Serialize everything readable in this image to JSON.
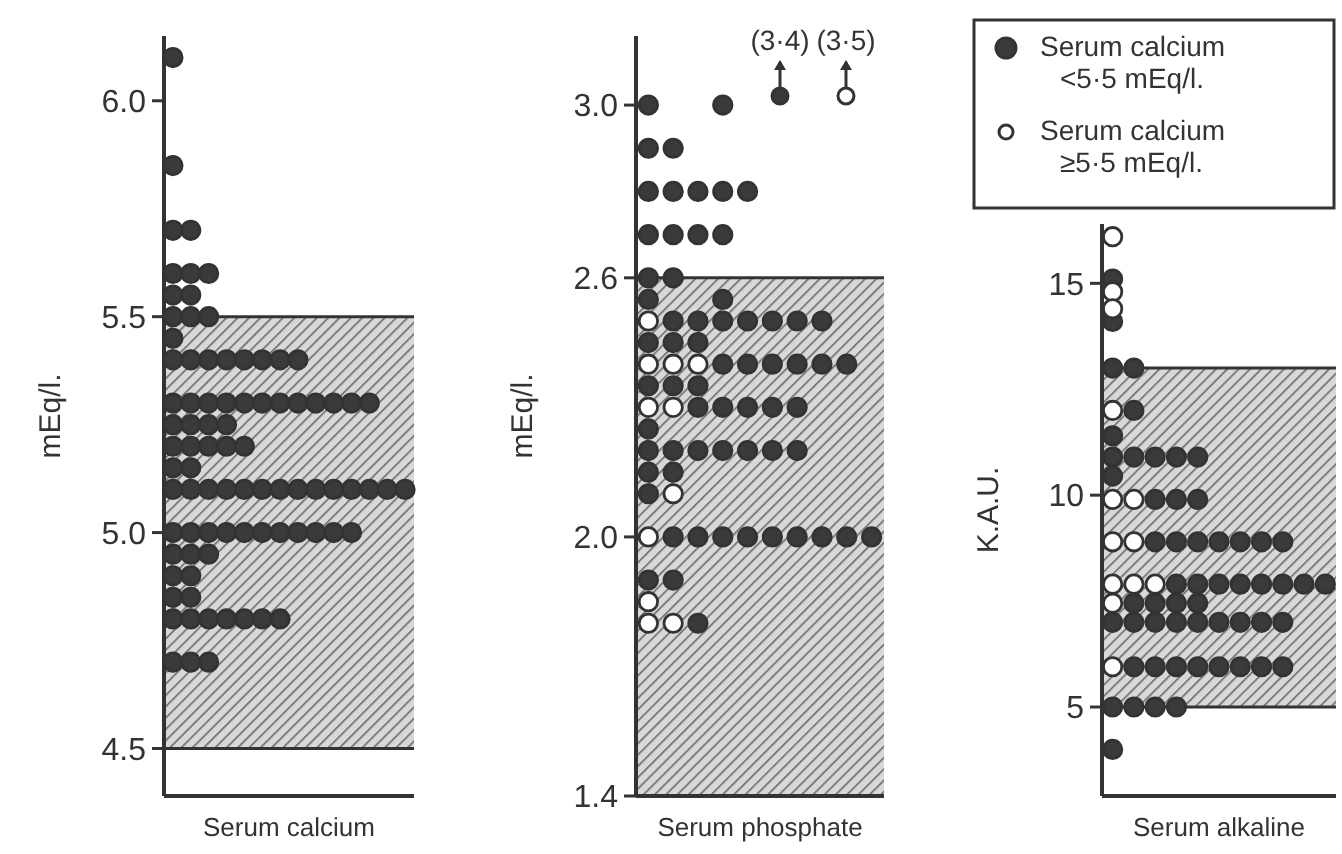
{
  "chart_data": [
    {
      "type": "scatter",
      "xlabel": "Serum calcium",
      "ylabel": "mEq/l.",
      "categories": [
        null,
        null,
        null,
        null,
        null,
        null,
        null,
        null,
        null,
        null,
        null,
        null,
        null,
        null
      ],
      "ylim": [
        4.39,
        6.15
      ],
      "yticks": [
        4.5,
        {
          "value": 5,
          "label": "5.0"
        },
        5.5,
        {
          "value": 6,
          "label": "6.0"
        }
      ],
      "tick_labels": "y",
      "marker": "circle",
      "bands": [
        {
          "axis": "y",
          "from": 4.5,
          "to": 5.5
        }
      ],
      "series": [
        {
          "color": "#3a3a3a",
          "values": [
            6.1,
            null,
            null,
            null,
            null,
            null,
            null,
            null,
            null,
            null,
            null,
            null,
            null,
            null
          ]
        },
        {
          "color": "#3a3a3a",
          "values": [
            5.85,
            null,
            null,
            null,
            null,
            null,
            null,
            null,
            null,
            null,
            null,
            null,
            null,
            null
          ]
        },
        {
          "color": "#3a3a3a",
          "values": [
            5.7,
            5.7,
            null,
            null,
            null,
            null,
            null,
            null,
            null,
            null,
            null,
            null,
            null,
            null
          ]
        },
        {
          "color": "#3a3a3a",
          "values": [
            5.6,
            5.6,
            5.6,
            null,
            null,
            null,
            null,
            null,
            null,
            null,
            null,
            null,
            null,
            null
          ]
        },
        {
          "color": "#3a3a3a",
          "values": [
            5.55,
            5.55,
            null,
            null,
            null,
            null,
            null,
            null,
            null,
            null,
            null,
            null,
            null,
            null
          ]
        },
        {
          "color": "#3a3a3a",
          "values": [
            5.5,
            5.5,
            5.5,
            null,
            null,
            null,
            null,
            null,
            null,
            null,
            null,
            null,
            null,
            null
          ]
        },
        {
          "color": "#3a3a3a",
          "values": [
            5.45,
            null,
            null,
            null,
            null,
            null,
            null,
            null,
            null,
            null,
            null,
            null,
            null,
            null
          ]
        },
        {
          "color": "#3a3a3a",
          "values": [
            5.4,
            5.4,
            5.4,
            5.4,
            5.4,
            5.4,
            5.4,
            5.4,
            null,
            null,
            null,
            null,
            null,
            null
          ]
        },
        {
          "color": "#3a3a3a",
          "values": [
            5.3,
            5.3,
            5.3,
            5.3,
            5.3,
            5.3,
            5.3,
            5.3,
            5.3,
            5.3,
            5.3,
            5.3,
            null,
            null
          ]
        },
        {
          "color": "#3a3a3a",
          "values": [
            5.25,
            5.25,
            5.25,
            5.25,
            null,
            null,
            null,
            null,
            null,
            null,
            null,
            null,
            null,
            null
          ]
        },
        {
          "color": "#3a3a3a",
          "values": [
            5.2,
            5.2,
            5.2,
            5.2,
            5.2,
            null,
            null,
            null,
            null,
            null,
            null,
            null,
            null,
            null
          ]
        },
        {
          "color": "#3a3a3a",
          "values": [
            5.15,
            5.15,
            null,
            null,
            null,
            null,
            null,
            null,
            null,
            null,
            null,
            null,
            null,
            null
          ]
        },
        {
          "color": "#3a3a3a",
          "values": [
            5.1,
            5.1,
            5.1,
            5.1,
            5.1,
            5.1,
            5.1,
            5.1,
            5.1,
            5.1,
            5.1,
            5.1,
            5.1,
            5.1
          ]
        },
        {
          "color": "#3a3a3a",
          "values": [
            5,
            5,
            5,
            5,
            5,
            5,
            5,
            5,
            5,
            5,
            5,
            null,
            null,
            null
          ]
        },
        {
          "color": "#3a3a3a",
          "values": [
            4.95,
            4.95,
            4.95,
            null,
            null,
            null,
            null,
            null,
            null,
            null,
            null,
            null,
            null,
            null
          ]
        },
        {
          "color": "#3a3a3a",
          "values": [
            4.9,
            4.9,
            null,
            null,
            null,
            null,
            null,
            null,
            null,
            null,
            null,
            null,
            null,
            null
          ]
        },
        {
          "color": "#3a3a3a",
          "values": [
            4.85,
            4.85,
            null,
            null,
            null,
            null,
            null,
            null,
            null,
            null,
            null,
            null,
            null,
            null
          ]
        },
        {
          "color": "#3a3a3a",
          "values": [
            4.8,
            4.8,
            4.8,
            4.8,
            4.8,
            4.8,
            4.8,
            null,
            null,
            null,
            null,
            null,
            null,
            null
          ]
        },
        {
          "color": "#3a3a3a",
          "values": [
            4.7,
            4.7,
            4.7,
            null,
            null,
            null,
            null,
            null,
            null,
            null,
            null,
            null,
            null,
            null
          ]
        }
      ]
    },
    {
      "type": "scatter",
      "xlabel": "Serum phosphate",
      "ylabel": "mEq/l.",
      "categories": [
        null,
        null,
        null,
        null,
        null,
        null,
        null,
        null,
        null,
        null
      ],
      "ylim": [
        1.4,
        3.16
      ],
      "yticks": [
        1.4,
        {
          "value": 2,
          "label": "2.0"
        },
        2.6,
        {
          "value": 3,
          "label": "3.0"
        }
      ],
      "tick_labels": "y",
      "marker": "circle",
      "bands": [
        {
          "axis": "y",
          "from": 1.4,
          "to": 2.6
        }
      ],
      "annotations": [
        "(3·4)",
        "(3·5)"
      ],
      "series": [
        {
          "color": "#3a3a3a",
          "values": [
            3,
            null,
            null,
            3,
            null,
            null,
            null,
            null,
            null,
            null
          ]
        },
        {
          "color": "#3a3a3a",
          "values": [
            2.9,
            2.9,
            null,
            null,
            null,
            null,
            null,
            null,
            null,
            null
          ]
        },
        {
          "color": "#3a3a3a",
          "values": [
            2.8,
            2.8,
            2.8,
            2.8,
            2.8,
            null,
            null,
            null,
            null,
            null
          ]
        },
        {
          "color": "#3a3a3a",
          "values": [
            2.7,
            2.7,
            2.7,
            2.7,
            null,
            null,
            null,
            null,
            null,
            null
          ]
        },
        {
          "color": "#3a3a3a",
          "values": [
            2.6,
            2.6,
            null,
            null,
            null,
            null,
            null,
            null,
            null,
            null
          ]
        },
        {
          "color": "#3a3a3a",
          "values": [
            2.55,
            null,
            null,
            2.55,
            null,
            null,
            null,
            null,
            null,
            null
          ]
        },
        {
          "color": "#3a3a3a",
          "values": [
            null,
            2.5,
            2.5,
            2.5,
            2.5,
            2.5,
            2.5,
            2.5,
            null,
            null
          ]
        },
        {
          "color": "#3a3a3a",
          "values": [
            2.45,
            2.45,
            2.45,
            null,
            null,
            null,
            null,
            null,
            null,
            null
          ]
        },
        {
          "color": "#3a3a3a",
          "values": [
            null,
            null,
            null,
            2.4,
            2.4,
            2.4,
            2.4,
            2.4,
            2.4,
            null
          ]
        },
        {
          "color": "#3a3a3a",
          "values": [
            2.35,
            2.35,
            2.35,
            null,
            null,
            null,
            null,
            null,
            null,
            null
          ]
        },
        {
          "color": "#3a3a3a",
          "values": [
            null,
            null,
            2.3,
            2.3,
            2.3,
            2.3,
            2.3,
            null,
            null,
            null
          ]
        },
        {
          "color": "#3a3a3a",
          "values": [
            2.25,
            null,
            null,
            null,
            null,
            null,
            null,
            null,
            null,
            null
          ]
        },
        {
          "color": "#3a3a3a",
          "values": [
            2.2,
            2.2,
            2.2,
            2.2,
            2.2,
            2.2,
            2.2,
            null,
            null,
            null
          ]
        },
        {
          "color": "#3a3a3a",
          "values": [
            2.15,
            2.15,
            null,
            null,
            null,
            null,
            null,
            null,
            null,
            null
          ]
        },
        {
          "color": "#3a3a3a",
          "values": [
            2.1,
            null,
            null,
            null,
            null,
            null,
            null,
            null,
            null,
            null
          ]
        },
        {
          "color": "#3a3a3a",
          "values": [
            null,
            2,
            2,
            2,
            2,
            2,
            2,
            2,
            2,
            2
          ]
        },
        {
          "color": "#3a3a3a",
          "values": [
            1.9,
            1.9,
            null,
            null,
            null,
            null,
            null,
            null,
            null,
            null
          ]
        },
        {
          "color": "#3a3a3a",
          "values": [
            null,
            null,
            1.8,
            null,
            null,
            null,
            null,
            null,
            null,
            null
          ]
        },
        {
          "color": "#ffffff",
          "values": [
            2.5,
            null,
            null,
            null,
            null,
            null,
            null,
            null,
            null,
            null
          ]
        },
        {
          "color": "#ffffff",
          "values": [
            2.4,
            2.4,
            2.4,
            null,
            null,
            null,
            null,
            null,
            null,
            null
          ]
        },
        {
          "color": "#ffffff",
          "values": [
            2.3,
            2.3,
            null,
            null,
            null,
            null,
            null,
            null,
            null,
            null
          ]
        },
        {
          "color": "#ffffff",
          "values": [
            null,
            2.1,
            null,
            null,
            null,
            null,
            null,
            null,
            null,
            null
          ]
        },
        {
          "color": "#ffffff",
          "values": [
            2,
            null,
            null,
            null,
            null,
            null,
            null,
            null,
            null,
            null
          ]
        },
        {
          "color": "#ffffff",
          "values": [
            1.85,
            null,
            null,
            null,
            null,
            null,
            null,
            null,
            null,
            null
          ]
        },
        {
          "color": "#ffffff",
          "values": [
            1.8,
            1.8,
            null,
            null,
            null,
            null,
            null,
            null,
            null,
            null
          ]
        }
      ]
    },
    {
      "type": "scatter",
      "xlabel": "Serum alkaline",
      "ylabel": "K.A.U.",
      "categories": [
        null,
        null,
        null,
        null,
        null,
        null,
        null,
        null,
        null,
        null,
        null
      ],
      "ylim": [
        2.9,
        16.4
      ],
      "yticks": [
        5,
        10,
        15
      ],
      "tick_labels": "y",
      "marker": "circle",
      "legend": "top",
      "bands": [
        {
          "axis": "y",
          "from": 5,
          "to": 13
        }
      ],
      "series": [
        {
          "name": "Serum calcium\n<5·5 mEq/l.",
          "color": "#3a3a3a",
          "values": [
            15.1,
            null,
            null,
            null,
            null,
            null,
            null,
            null,
            null,
            null,
            null
          ]
        },
        {
          "color": "#3a3a3a",
          "values": [
            14.1,
            null,
            null,
            null,
            null,
            null,
            null,
            null,
            null,
            null,
            null
          ]
        },
        {
          "color": "#3a3a3a",
          "values": [
            13,
            13,
            null,
            null,
            null,
            null,
            null,
            null,
            null,
            null,
            null
          ]
        },
        {
          "color": "#3a3a3a",
          "values": [
            null,
            12,
            null,
            null,
            null,
            null,
            null,
            null,
            null,
            null,
            null
          ]
        },
        {
          "color": "#3a3a3a",
          "values": [
            11.4,
            null,
            null,
            null,
            null,
            null,
            null,
            null,
            null,
            null,
            null
          ]
        },
        {
          "color": "#3a3a3a",
          "values": [
            10.9,
            10.9,
            10.9,
            10.9,
            10.9,
            null,
            null,
            null,
            null,
            null,
            null
          ]
        },
        {
          "color": "#3a3a3a",
          "values": [
            10.45,
            null,
            null,
            null,
            null,
            null,
            null,
            null,
            null,
            null,
            null
          ]
        },
        {
          "color": "#3a3a3a",
          "values": [
            null,
            null,
            9.9,
            9.9,
            9.9,
            null,
            null,
            null,
            null,
            null,
            null
          ]
        },
        {
          "color": "#3a3a3a",
          "values": [
            null,
            null,
            8.9,
            8.9,
            8.9,
            8.9,
            8.9,
            8.9,
            8.9,
            null,
            null
          ]
        },
        {
          "color": "#3a3a3a",
          "values": [
            null,
            null,
            null,
            7.9,
            7.9,
            7.9,
            7.9,
            7.9,
            7.9,
            7.9,
            7.9
          ]
        },
        {
          "color": "#3a3a3a",
          "values": [
            null,
            7.45,
            7.45,
            7.45,
            7.45,
            null,
            null,
            null,
            null,
            null,
            null
          ]
        },
        {
          "color": "#3a3a3a",
          "values": [
            7,
            7,
            7,
            7,
            7,
            7,
            7,
            7,
            7,
            null,
            null
          ]
        },
        {
          "color": "#3a3a3a",
          "values": [
            null,
            5.95,
            5.95,
            5.95,
            5.95,
            5.95,
            5.95,
            5.95,
            5.95,
            null,
            null
          ]
        },
        {
          "color": "#3a3a3a",
          "values": [
            5,
            5,
            5,
            5,
            null,
            null,
            null,
            null,
            null,
            null,
            null
          ]
        },
        {
          "color": "#3a3a3a",
          "values": [
            4,
            null,
            null,
            null,
            null,
            null,
            null,
            null,
            null,
            null,
            null
          ]
        },
        {
          "name": "Serum calcium\n≥5·5 mEq/l.",
          "color": "#ffffff",
          "values": [
            16.1,
            null,
            null,
            null,
            null,
            null,
            null,
            null,
            null,
            null,
            null
          ]
        },
        {
          "color": "#ffffff",
          "values": [
            14.8,
            null,
            null,
            null,
            null,
            null,
            null,
            null,
            null,
            null,
            null
          ]
        },
        {
          "color": "#ffffff",
          "values": [
            14.4,
            null,
            null,
            null,
            null,
            null,
            null,
            null,
            null,
            null,
            null
          ]
        },
        {
          "color": "#ffffff",
          "values": [
            12,
            null,
            null,
            null,
            null,
            null,
            null,
            null,
            null,
            null,
            null
          ]
        },
        {
          "color": "#ffffff",
          "values": [
            9.9,
            9.9,
            null,
            null,
            null,
            null,
            null,
            null,
            null,
            null,
            null
          ]
        },
        {
          "color": "#ffffff",
          "values": [
            8.9,
            8.9,
            null,
            null,
            null,
            null,
            null,
            null,
            null,
            null,
            null
          ]
        },
        {
          "color": "#ffffff",
          "values": [
            7.9,
            7.9,
            7.9,
            null,
            null,
            null,
            null,
            null,
            null,
            null,
            null
          ]
        },
        {
          "color": "#ffffff",
          "values": [
            7.45,
            null,
            null,
            null,
            null,
            null,
            null,
            null,
            null,
            null,
            null
          ]
        },
        {
          "color": "#ffffff",
          "values": [
            5.95,
            null,
            null,
            null,
            null,
            null,
            null,
            null,
            null,
            null,
            null
          ]
        }
      ]
    }
  ]
}
